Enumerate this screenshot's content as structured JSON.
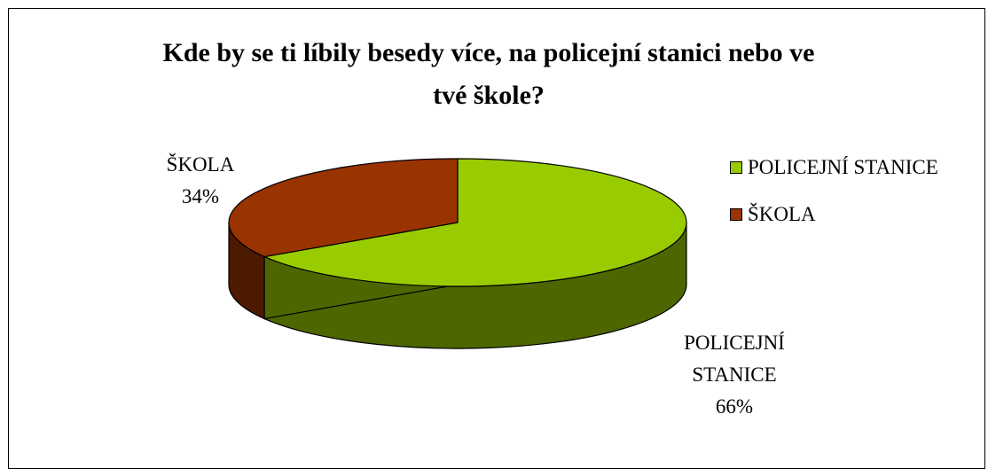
{
  "chart_data": {
    "type": "pie",
    "title_lines": [
      "Kde by se ti líbily besedy více, na policejní stanici nebo ve",
      "tvé škole?"
    ],
    "slices": [
      {
        "name": "POLICEJNÍ STANICE",
        "value": 66,
        "label_lines": [
          "POLICEJNÍ",
          "STANICE",
          "66%"
        ],
        "color": "#99cc00",
        "side_color": "#4d6600"
      },
      {
        "name": "ŠKOLA",
        "value": 34,
        "label_lines": [
          "ŠKOLA",
          "34%"
        ],
        "color": "#993300",
        "side_color": "#4d1a00"
      }
    ],
    "legend": {
      "position": "right",
      "items": [
        "POLICEJNÍ STANICE",
        "ŠKOLA"
      ]
    },
    "style": "3d"
  }
}
